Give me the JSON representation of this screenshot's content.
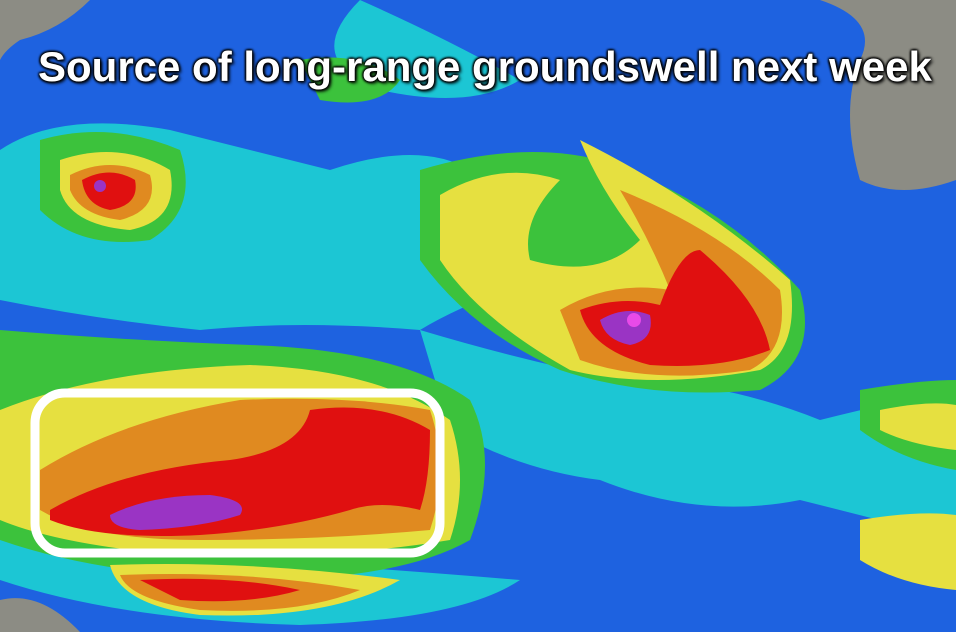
{
  "caption": "Source of long-range groundswell next week"
}
